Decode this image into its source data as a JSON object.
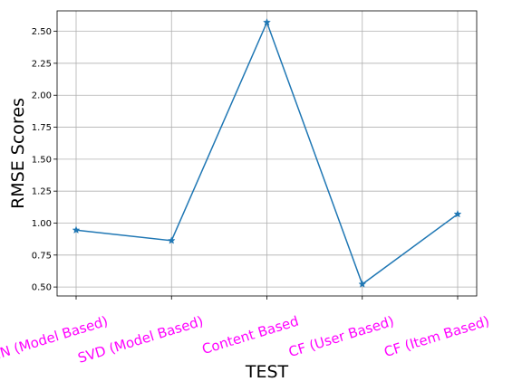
{
  "chart_data": {
    "type": "line",
    "title": "",
    "xlabel": "TEST",
    "ylabel": "RMSE Scores",
    "categories": [
      "KNN (Model Based)",
      "SVD (Model Based)",
      "Content Based",
      "CF (User Based)",
      "CF (Item Based)"
    ],
    "series": [
      {
        "values": [
          0.945,
          0.863,
          2.57,
          0.522,
          1.07
        ]
      }
    ],
    "yticks": [
      "0.50",
      "0.75",
      "1.00",
      "1.25",
      "1.50",
      "1.75",
      "2.00",
      "2.25",
      "2.50"
    ],
    "ylim": [
      0.43,
      2.66
    ],
    "grid": true,
    "marker": "star",
    "colors": {
      "line": "#1f77b4",
      "category_labels": "#ff00ff"
    }
  }
}
